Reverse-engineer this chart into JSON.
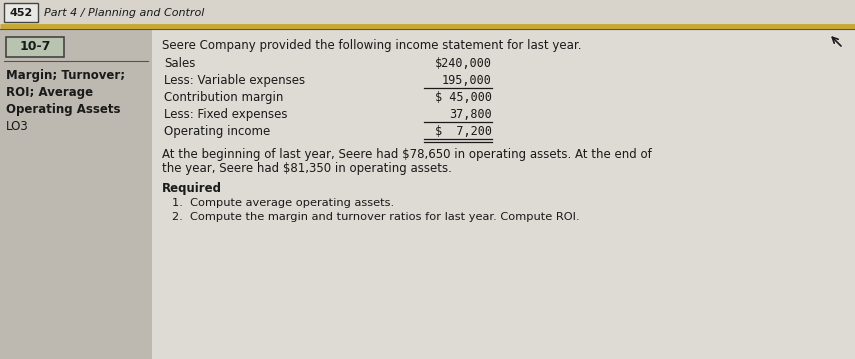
{
  "page_number": "452",
  "header_text": "Part 4 / Planning and Control",
  "exercise_number": "10-7",
  "sidebar_lines": [
    "Margin; Turnover;",
    "ROI; Average",
    "Operating Assets",
    "LO3"
  ],
  "intro_text": "Seere Company provided the following income statement for last year.",
  "income_statement": [
    {
      "label": "Sales",
      "value": "$240,000",
      "underline": false,
      "double_underline": false
    },
    {
      "label": "Less: Variable expenses",
      "value": "195,000",
      "underline": true,
      "double_underline": false
    },
    {
      "label": "Contribution margin",
      "value": "$ 45,000",
      "underline": false,
      "double_underline": false
    },
    {
      "label": "Less: Fixed expenses",
      "value": "37,800",
      "underline": true,
      "double_underline": false
    },
    {
      "label": "Operating income",
      "value": "$  7,200",
      "underline": true,
      "double_underline": true
    }
  ],
  "paragraph_text_line1": "At the beginning of last year, Seere had $78,650 in operating assets. At the end of",
  "paragraph_text_line2": "the year, Seere had $81,350 in operating assets.",
  "required_label": "Required",
  "required_items": [
    "1.  Compute average operating assets.",
    "2.  Compute the margin and turnover ratios for last year. Compute ROI."
  ],
  "bg_color": "#cac4bc",
  "content_bg": "#dedad4",
  "header_bg": "#d8d4cc",
  "sidebar_bg": "#bdb8b0",
  "exercise_box_bg": "#b8c4b0",
  "header_line_color_gold": "#c8a830",
  "header_line_color_dark": "#555550",
  "text_color": "#1a1a1a",
  "sidebar_text_color": "#1a1a1a",
  "fig_w": 8.55,
  "fig_h": 3.59,
  "dpi": 100
}
